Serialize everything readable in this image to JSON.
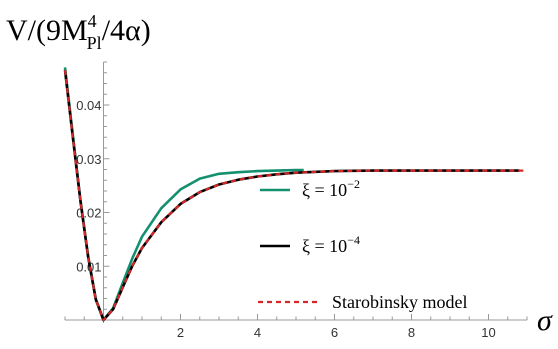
{
  "chart_data": {
    "type": "line",
    "ylabel": {
      "base": "V/(9M",
      "sup": "4",
      "sub": "Pl",
      "tail": "/4α)"
    },
    "xlabel": "σ",
    "xlim": [
      -1,
      11
    ],
    "ylim": [
      0,
      0.048
    ],
    "x_ticks": [
      2,
      4,
      6,
      8,
      10
    ],
    "x_tick_labels": [
      "2",
      "4",
      "6",
      "8",
      "10"
    ],
    "y_ticks": [
      0.01,
      0.02,
      0.03,
      0.04
    ],
    "y_tick_labels": [
      "0.01",
      "0.02",
      "0.03",
      "0.04"
    ],
    "grid": false,
    "legend_position": "right",
    "series": [
      {
        "name": "ξ = 10",
        "name_sup": "−2",
        "color": "#12906f",
        "style": "solid",
        "x": [
          -1,
          -0.8,
          -0.6,
          -0.4,
          -0.2,
          0,
          0.25,
          0.5,
          0.75,
          1,
          1.5,
          2,
          2.5,
          3,
          3.5,
          4,
          4.5,
          5,
          5.2
        ],
        "y": [
          0.047,
          0.0346,
          0.0224,
          0.0119,
          0.0039,
          0,
          0.0022,
          0.0069,
          0.0115,
          0.0155,
          0.0208,
          0.0243,
          0.0263,
          0.0272,
          0.0275,
          0.0277,
          0.0278,
          0.0279,
          0.0279
        ]
      },
      {
        "name": "ξ = 10",
        "name_sup": "−4",
        "color": "#000000",
        "style": "solid",
        "x": [
          -1,
          -0.8,
          -0.6,
          -0.4,
          -0.2,
          0,
          0.25,
          0.5,
          0.75,
          1,
          1.5,
          2,
          2.5,
          3,
          3.5,
          4,
          4.5,
          5,
          6,
          7,
          8,
          9,
          10,
          10.8
        ],
        "y": [
          0.0465,
          0.0342,
          0.0222,
          0.0118,
          0.0038,
          0,
          0.002,
          0.0061,
          0.0101,
          0.0134,
          0.0182,
          0.0216,
          0.0238,
          0.0252,
          0.0261,
          0.0267,
          0.0271,
          0.0274,
          0.0277,
          0.0278,
          0.0278,
          0.0278,
          0.0278,
          0.0278
        ]
      },
      {
        "name": "Starobinsky model",
        "color": "#d62728",
        "style": "dashed",
        "x": [
          -1,
          -0.8,
          -0.6,
          -0.4,
          -0.2,
          0,
          0.25,
          0.5,
          0.75,
          1,
          1.5,
          2,
          2.5,
          3,
          3.5,
          4,
          4.5,
          5,
          6,
          7,
          8,
          9,
          10,
          11
        ],
        "y": [
          0.0465,
          0.0342,
          0.0222,
          0.0118,
          0.0038,
          0,
          0.002,
          0.0061,
          0.0101,
          0.0134,
          0.0182,
          0.0216,
          0.0238,
          0.0252,
          0.0261,
          0.0267,
          0.0271,
          0.0274,
          0.0277,
          0.0278,
          0.0278,
          0.0278,
          0.0278,
          0.0278
        ]
      }
    ]
  }
}
